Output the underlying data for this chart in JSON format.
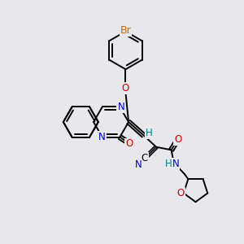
{
  "bg_color": "#e8e8ec",
  "bond_color": "#000000",
  "bond_width": 1.4,
  "atom_colors": {
    "Br": "#cc6600",
    "N": "#0000cc",
    "O": "#cc0000",
    "C": "#000000",
    "H": "#008080"
  },
  "font_size": 8.5
}
